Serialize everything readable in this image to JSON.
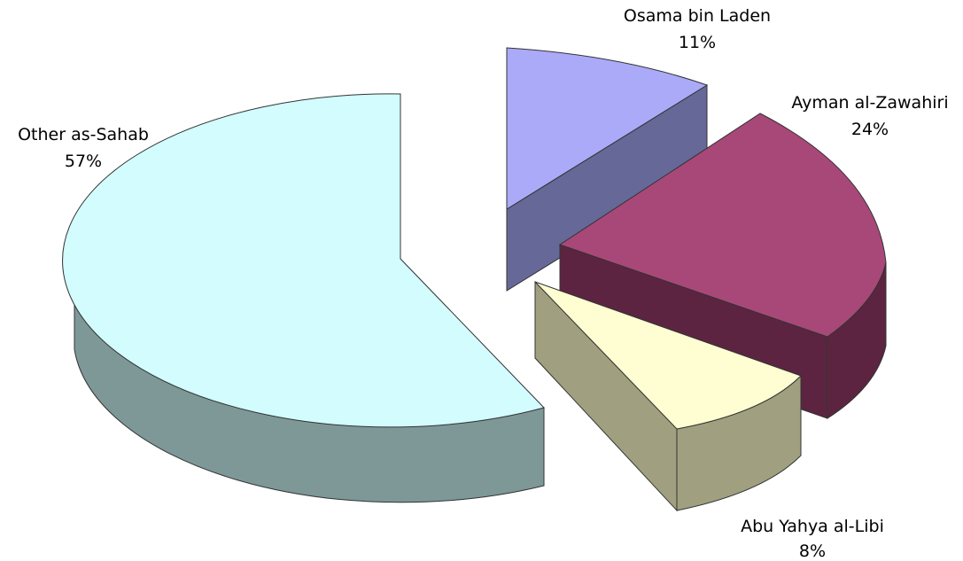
{
  "chart_data": {
    "type": "pie",
    "style": "3d-exploded",
    "title": "",
    "slices": [
      {
        "label": "Osama bin Laden",
        "value": 11,
        "value_label": "11%",
        "top_color": "#aaaaf8",
        "side_color": "#666898"
      },
      {
        "label": "Ayman al-Zawahiri",
        "value": 24,
        "value_label": "24%",
        "top_color": "#a84878",
        "side_color": "#5c2440"
      },
      {
        "label": "Abu Yahya al-Libi",
        "value": 8,
        "value_label": "8%",
        "top_color": "#fefed2",
        "side_color": "#a0a080"
      },
      {
        "label": "Other as-Sahab",
        "value": 57,
        "value_label": "57%",
        "top_color": "#d2fcfe",
        "side_color": "#7e9898"
      }
    ]
  }
}
